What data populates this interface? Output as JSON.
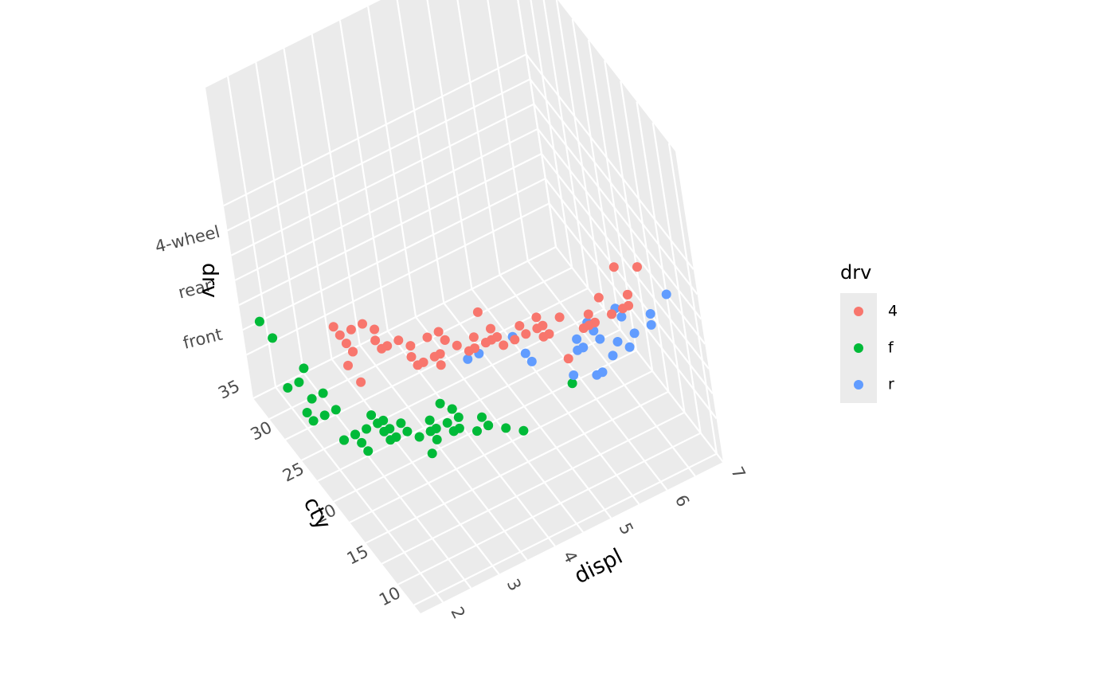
{
  "chart_data": {
    "type": "scatter",
    "projection": "3d",
    "xlabel": "displ",
    "ylabel": "cty",
    "zlabel": "drv",
    "xlim": [
      1.6,
      7.0
    ],
    "ylim": [
      9,
      35
    ],
    "xticks": [
      2,
      3,
      4,
      5,
      6,
      7
    ],
    "yticks": [
      10,
      15,
      20,
      25,
      30,
      35
    ],
    "zticks": [
      "front",
      "rear",
      "4-wheel"
    ],
    "grid": true,
    "legend": {
      "title": "drv",
      "placement": "right"
    },
    "series": [
      {
        "name": "4",
        "color": "#F8766D",
        "z_level": "4-wheel",
        "points": [
          [
            1.8,
            18
          ],
          [
            1.8,
            16
          ],
          [
            2.0,
            20
          ],
          [
            2.0,
            19
          ],
          [
            2.8,
            15
          ],
          [
            2.8,
            17
          ],
          [
            3.1,
            17
          ],
          [
            3.1,
            15
          ],
          [
            4.0,
            14
          ],
          [
            4.2,
            13
          ],
          [
            4.7,
            14
          ],
          [
            5.2,
            11
          ],
          [
            5.7,
            13
          ],
          [
            6.1,
            12
          ],
          [
            6.5,
            14
          ],
          [
            5.3,
            11
          ],
          [
            2.4,
            21
          ],
          [
            2.4,
            19
          ],
          [
            2.5,
            18
          ],
          [
            2.5,
            20
          ],
          [
            3.0,
            15
          ],
          [
            3.3,
            17
          ],
          [
            3.3,
            16
          ],
          [
            3.7,
            15
          ],
          [
            3.9,
            14
          ],
          [
            4.0,
            17
          ],
          [
            4.6,
            13
          ],
          [
            4.7,
            9
          ],
          [
            4.7,
            12
          ],
          [
            5.4,
            11
          ],
          [
            5.9,
            11
          ],
          [
            5.7,
            11
          ],
          [
            3.4,
            15
          ],
          [
            3.8,
            14
          ],
          [
            3.5,
            14
          ],
          [
            4.4,
            13
          ],
          [
            2.2,
            21
          ],
          [
            2.7,
            16
          ],
          [
            2.7,
            15
          ],
          [
            4.0,
            15
          ],
          [
            4.6,
            12
          ],
          [
            5.4,
            11
          ],
          [
            2.4,
            18
          ],
          [
            2.7,
            18
          ],
          [
            3.3,
            16
          ],
          [
            3.8,
            14
          ],
          [
            4.0,
            13
          ],
          [
            5.0,
            13
          ],
          [
            5.4,
            12
          ],
          [
            6.0,
            11
          ],
          [
            6.2,
            15
          ],
          [
            2.0,
            21
          ],
          [
            2.0,
            22
          ],
          [
            2.0,
            19
          ],
          [
            3.0,
            14
          ],
          [
            3.6,
            14
          ],
          [
            4.4,
            14
          ],
          [
            4.7,
            13
          ],
          [
            5.7,
            11
          ],
          [
            6.1,
            12
          ]
        ]
      },
      {
        "name": "f",
        "color": "#00BA38",
        "z_level": "front",
        "points": [
          [
            1.8,
            28
          ],
          [
            1.8,
            21
          ],
          [
            2.0,
            21
          ],
          [
            2.0,
            20
          ],
          [
            2.8,
            16
          ],
          [
            2.8,
            18
          ],
          [
            3.1,
            18
          ],
          [
            2.4,
            19
          ],
          [
            2.4,
            21
          ],
          [
            3.0,
            18
          ],
          [
            3.3,
            17
          ],
          [
            3.3,
            18
          ],
          [
            3.8,
            16
          ],
          [
            4.0,
            15
          ],
          [
            2.2,
            21
          ],
          [
            3.5,
            18
          ],
          [
            3.5,
            19
          ],
          [
            1.6,
            28
          ],
          [
            1.6,
            24
          ],
          [
            1.6,
            25
          ],
          [
            1.8,
            26
          ],
          [
            1.8,
            24
          ],
          [
            2.0,
            24
          ],
          [
            2.0,
            26
          ],
          [
            2.4,
            21
          ],
          [
            2.4,
            22
          ],
          [
            3.3,
            17
          ],
          [
            3.8,
            17
          ],
          [
            5.3,
            16
          ],
          [
            1.9,
            33
          ],
          [
            1.9,
            35
          ],
          [
            2.0,
            29
          ],
          [
            2.5,
            21
          ],
          [
            2.5,
            20
          ],
          [
            2.7,
            19
          ],
          [
            2.7,
            20
          ],
          [
            3.0,
            17
          ],
          [
            3.4,
            17
          ],
          [
            3.4,
            20
          ],
          [
            3.5,
            19
          ],
          [
            4.2,
            14
          ],
          [
            1.8,
            21
          ],
          [
            2.0,
            19
          ],
          [
            2.0,
            21
          ],
          [
            2.4,
            20
          ],
          [
            2.5,
            19
          ],
          [
            3.1,
            19
          ],
          [
            3.6,
            16
          ],
          [
            3.8,
            16
          ]
        ]
      },
      {
        "name": "r",
        "color": "#619CFF",
        "z_level": "rear",
        "points": [
          [
            5.7,
            15
          ],
          [
            5.7,
            16
          ],
          [
            6.2,
            16
          ],
          [
            6.2,
            15
          ],
          [
            7.0,
            15
          ],
          [
            5.3,
            14
          ],
          [
            5.3,
            11
          ],
          [
            5.7,
            14
          ],
          [
            6.0,
            12
          ],
          [
            6.5,
            13
          ],
          [
            4.6,
            15
          ],
          [
            5.4,
            15
          ],
          [
            4.0,
            18
          ],
          [
            4.6,
            16
          ],
          [
            3.8,
            18
          ],
          [
            4.6,
            18
          ],
          [
            5.4,
            14
          ],
          [
            5.0,
            12
          ],
          [
            6.2,
            13
          ],
          [
            6.6,
            14
          ],
          [
            5.4,
            14
          ],
          [
            5.4,
            11
          ],
          [
            5.9,
            13
          ],
          [
            5.7,
            12
          ]
        ]
      }
    ]
  }
}
